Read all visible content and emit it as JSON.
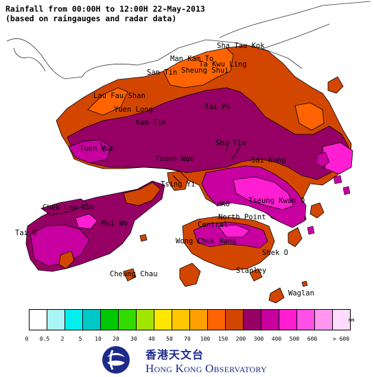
{
  "title": {
    "line1": "Rainfall from 00:00H to 12:00H 22-May-2013",
    "line2": "(based on raingauges and radar data)"
  },
  "places": [
    {
      "id": "sha-tau-kok",
      "label": "Sha Tau Kok"
    },
    {
      "id": "man-kam-to",
      "label": "Man Kam To"
    },
    {
      "id": "ta-kwu-ling",
      "label": "Ta Kwu Ling"
    },
    {
      "id": "san-tin",
      "label": "San Tin"
    },
    {
      "id": "sheung-shui",
      "label": "Sheung Shui"
    },
    {
      "id": "lau-fau-shan",
      "label": "Lau Fau Shan"
    },
    {
      "id": "tai-po",
      "label": "Tai Po"
    },
    {
      "id": "yuen-long",
      "label": "Yuen Long"
    },
    {
      "id": "kam-tin",
      "label": "Kam Tin"
    },
    {
      "id": "sha-tin",
      "label": "Sha Tin"
    },
    {
      "id": "tuen-mun",
      "label": "Tuen Mun"
    },
    {
      "id": "tsuen-wan",
      "label": "Tsuen Wan"
    },
    {
      "id": "sai-kung",
      "label": "Sai Kung"
    },
    {
      "id": "tsing-yi",
      "label": "Tsing Yi"
    },
    {
      "id": "chek-lap-kok",
      "label": "Chek Lap Kok"
    },
    {
      "id": "hko",
      "label": "HKO"
    },
    {
      "id": "tseung-kwan-o",
      "label": "Tseung Kwan O"
    },
    {
      "id": "mui-wo",
      "label": "Mui Wo"
    },
    {
      "id": "north-point",
      "label": "North Point"
    },
    {
      "id": "central",
      "label": "Central"
    },
    {
      "id": "tai-o",
      "label": "Tai O"
    },
    {
      "id": "wong-chuk-hang",
      "label": "Wong Chuk Hang"
    },
    {
      "id": "shek-o",
      "label": "Shek O"
    },
    {
      "id": "cheung-chau",
      "label": "Cheung Chau"
    },
    {
      "id": "stanley",
      "label": "Stanley"
    },
    {
      "id": "waglan",
      "label": "Waglan"
    }
  ],
  "legend": {
    "unit": "mm",
    "colors": [
      "#ffffff",
      "#aaf5f5",
      "#00f0f0",
      "#00c8c8",
      "#00c800",
      "#32dc00",
      "#a0e600",
      "#ffe600",
      "#ffc800",
      "#ffa000",
      "#ff6400",
      "#d24600",
      "#960064",
      "#c800a0",
      "#ff1ed2",
      "#ff50e6",
      "#ff96f0",
      "#ffdcff"
    ],
    "ticks": [
      "0",
      "0.5",
      "2",
      "5",
      "10",
      "20",
      "30",
      "40",
      "50",
      "70",
      "100",
      "150",
      "200",
      "300",
      "400",
      "500",
      "600",
      "> 600"
    ]
  },
  "logo": {
    "chinese": "香港天文台",
    "english": "Hong Kong Observatory"
  },
  "map_colors": {
    "band_100_150": "#d24600",
    "band_70_100": "#ff6400",
    "band_150_200": "#960064",
    "band_200_300": "#c800a0",
    "band_300_400": "#ff1ed2",
    "land_outline": "#000000"
  }
}
